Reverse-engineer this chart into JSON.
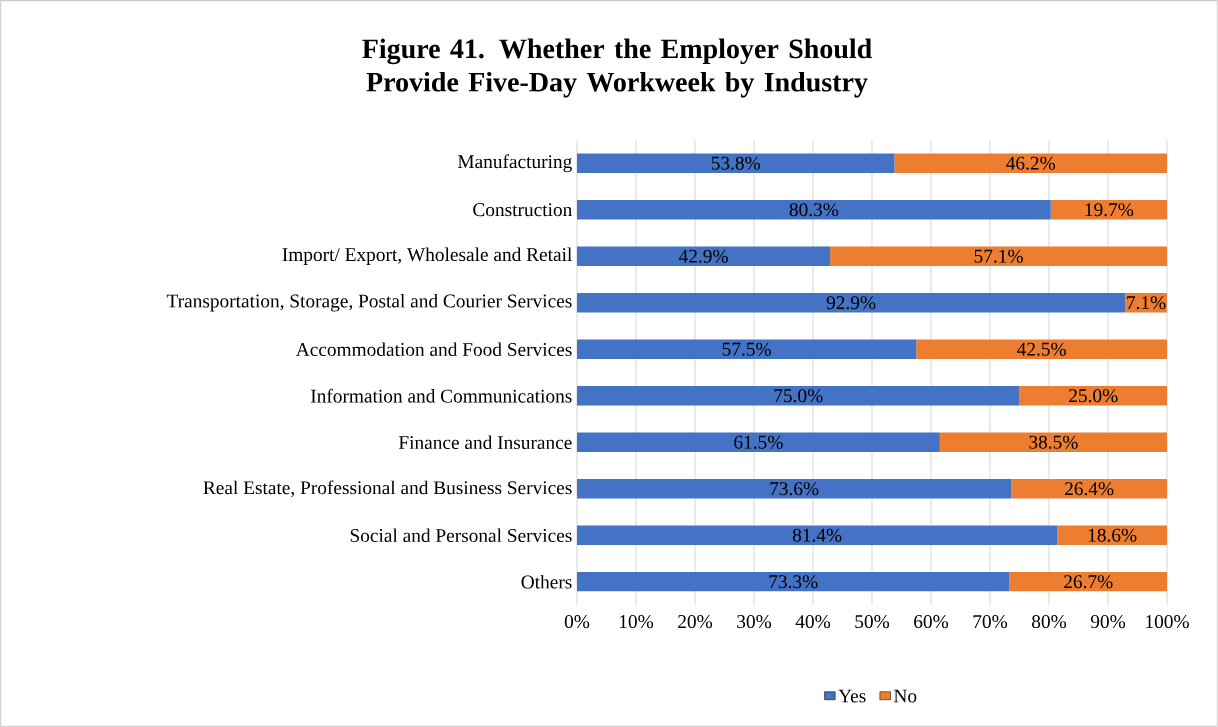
{
  "chart_data": {
    "type": "bar",
    "orientation": "horizontal",
    "stacked": true,
    "title": "Figure 41. Whether the Employer Should Provide Five-Day Workweek by Industry",
    "categories": [
      "Manufacturing",
      "Construction",
      "Import/ Export, Wholesale and Retail",
      "Transportation, Storage, Postal and Courier Services",
      "Accommodation and Food Services",
      "Information and Communications",
      "Finance and Insurance",
      "Real Estate, Professional and Business Services",
      "Social and Personal Services",
      "Others"
    ],
    "series": [
      {
        "name": "Yes",
        "color": "#4472c4",
        "values": [
          53.8,
          80.3,
          42.9,
          92.9,
          57.5,
          75.0,
          61.5,
          73.6,
          81.4,
          73.3
        ],
        "value_labels": [
          "53.8%",
          "80.3%",
          "42.9%",
          "92.9%",
          "57.5%",
          "75.0%",
          "61.5%",
          "73.6%",
          "81.4%",
          "73.3%"
        ]
      },
      {
        "name": "No",
        "color": "#ed7d31",
        "values": [
          46.2,
          19.7,
          57.1,
          7.1,
          42.5,
          25.0,
          38.5,
          26.4,
          18.6,
          26.7
        ],
        "value_labels": [
          "46.2%",
          "19.7%",
          "57.1%",
          "7.1%",
          "42.5%",
          "25.0%",
          "38.5%",
          "26.4%",
          "18.6%",
          "26.7%"
        ]
      }
    ],
    "xlim": [
      0,
      100
    ],
    "xticks": [
      {
        "value": 0,
        "label": "0%"
      },
      {
        "value": 10,
        "label": "10%"
      },
      {
        "value": 20,
        "label": "20%"
      },
      {
        "value": 30,
        "label": "30%"
      },
      {
        "value": 40,
        "label": "40%"
      },
      {
        "value": 50,
        "label": "50%"
      },
      {
        "value": 60,
        "label": "60%"
      },
      {
        "value": 70,
        "label": "70%"
      },
      {
        "value": 80,
        "label": "80%"
      },
      {
        "value": 90,
        "label": "90%"
      },
      {
        "value": 100,
        "label": "100%"
      }
    ],
    "grid": "x",
    "legend": "bottom"
  }
}
